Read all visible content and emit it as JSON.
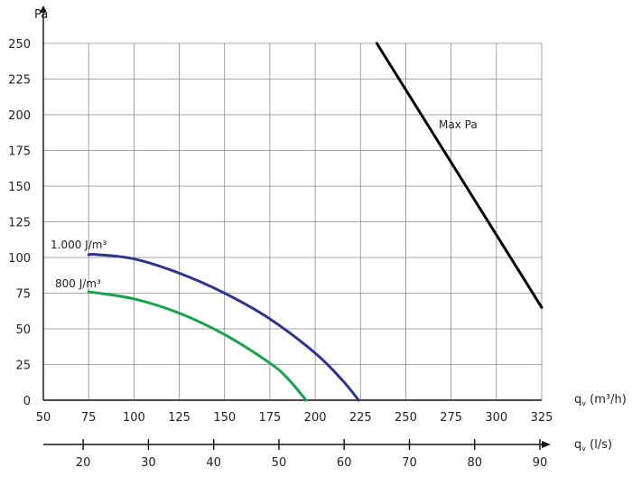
{
  "chart_data": {
    "type": "line",
    "ylabel": "Pa",
    "xlabel": "qv (m³/h)",
    "x2label": "qv (l/s)",
    "xlim": [
      50,
      325
    ],
    "ylim": [
      0,
      250
    ],
    "x_ticks": [
      "50",
      "75",
      "100",
      "125",
      "150",
      "175",
      "200",
      "225",
      "250",
      "275",
      "300",
      "325"
    ],
    "y_ticks": [
      "0",
      "25",
      "50",
      "75",
      "100",
      "125",
      "150",
      "175",
      "200",
      "225",
      "250"
    ],
    "x2_ticks": [
      "20",
      "30",
      "40",
      "50",
      "60",
      "70",
      "80",
      "90"
    ],
    "grid": true,
    "series": [
      {
        "name": "1.000 J/m³",
        "color": "#2b3590",
        "x": [
          75,
          80,
          100,
          125,
          150,
          175,
          200,
          215,
          224
        ],
        "y": [
          102,
          102,
          99,
          89,
          75,
          57,
          33,
          14,
          0
        ]
      },
      {
        "name": "800 J/m³",
        "color": "#16a34a",
        "x": [
          75,
          100,
          125,
          150,
          175,
          185,
          195
        ],
        "y": [
          76,
          71,
          61,
          46,
          26,
          15,
          0
        ]
      },
      {
        "name": "Max Pa",
        "color": "#000000",
        "x": [
          234,
          325
        ],
        "y": [
          250,
          65
        ]
      }
    ]
  }
}
